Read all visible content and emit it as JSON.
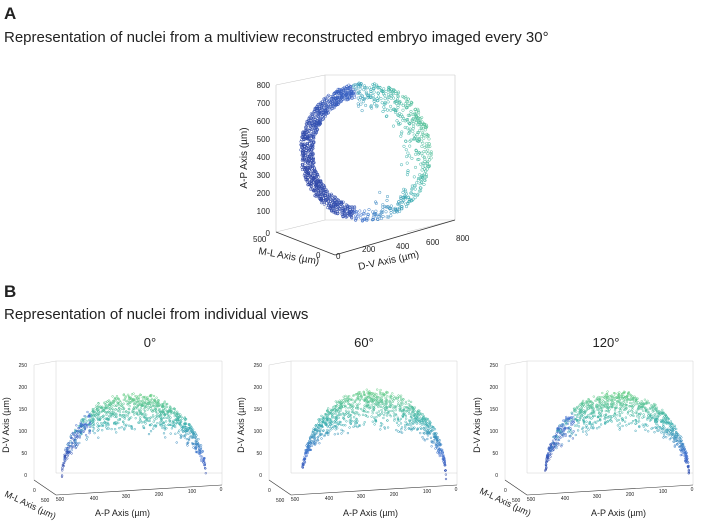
{
  "panel_a": {
    "letter": "A",
    "caption": "Representation of nuclei from a multiview reconstructed embryo imaged every 30°"
  },
  "panel_b": {
    "letter": "B",
    "caption": "Representation of nuclei from individual views"
  },
  "colors": {
    "deep_blue": "#2a3a9a",
    "blue": "#3f6fd0",
    "teal": "#3ab0b0",
    "green": "#6cd08a"
  },
  "chart_data": [
    {
      "type": "scatter",
      "name": "multiview",
      "title": "",
      "xlabel": "D-V Axis (µm)",
      "ylabel": "A-P Axis (µm)",
      "zlabel": "M-L Axis (µm)",
      "x_ticks": [
        "0",
        "200",
        "400",
        "600",
        "800"
      ],
      "y_ticks": [
        "0",
        "100",
        "200",
        "300",
        "400",
        "500",
        "600",
        "700",
        "800"
      ],
      "z_ticks": [
        "500",
        "0"
      ],
      "ylim": [
        0,
        800
      ],
      "xlim": [
        0,
        800
      ],
      "shape": "spherical shell of nuclei, dense dark-blue rim on left, green on upper right",
      "colormap": [
        "#2a3a9a",
        "#3f6fd0",
        "#3ab0b0",
        "#6cd08a"
      ]
    },
    {
      "type": "scatter",
      "name": "view-0",
      "view_label": "0°",
      "xlabel": "A-P Axis (µm)",
      "ylabel": "D-V Axis (µm)",
      "zlabel": "M-L Axis (µm)",
      "x_ticks": [
        "500",
        "400",
        "300",
        "200",
        "100",
        "0"
      ],
      "y_ticks": [
        "0",
        "50",
        "100",
        "150",
        "200",
        "250"
      ],
      "z_ticks": [
        "0",
        "500"
      ],
      "ylim": [
        0,
        250
      ],
      "shape": "dome of nuclei peaking near 190 µm D-V"
    },
    {
      "type": "scatter",
      "name": "view-60",
      "view_label": "60°",
      "xlabel": "A-P Axis (µm)",
      "ylabel": "D-V Axis (µm)",
      "zlabel": "",
      "x_ticks": [
        "500",
        "400",
        "300",
        "200",
        "100",
        "0"
      ],
      "y_ticks": [
        "0",
        "50",
        "100",
        "150",
        "200",
        "250"
      ],
      "z_ticks": [
        "0",
        "500"
      ],
      "ylim": [
        0,
        250
      ],
      "shape": "flatter dome of nuclei peaking near 200 µm D-V"
    },
    {
      "type": "scatter",
      "name": "view-120",
      "view_label": "120°",
      "xlabel": "A-P Axis (µm)",
      "ylabel": "D-V Axis (µm)",
      "zlabel": "M-L Axis (µm)",
      "x_ticks": [
        "500",
        "400",
        "300",
        "200",
        "100",
        "0"
      ],
      "y_ticks": [
        "0",
        "50",
        "100",
        "150",
        "200",
        "250"
      ],
      "z_ticks": [
        "0",
        "500"
      ],
      "ylim": [
        0,
        250
      ],
      "shape": "asymmetric dome with dense dark-blue left flank"
    }
  ]
}
